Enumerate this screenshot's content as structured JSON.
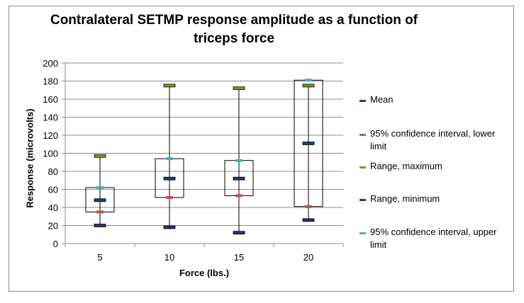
{
  "chart_data": {
    "type": "box",
    "title": "Contralateral SETMP response amplitude as a function of triceps force",
    "xlabel": "Force (lbs.)",
    "ylabel": "Response (microvolts)",
    "categories": [
      "5",
      "10",
      "15",
      "20"
    ],
    "ylim": [
      0,
      200
    ],
    "yticks": [
      0,
      20,
      40,
      60,
      80,
      100,
      120,
      140,
      160,
      180,
      200
    ],
    "grid": true,
    "legend_position": "right",
    "series": [
      {
        "name": "Mean",
        "key": "mean",
        "color": "#1f3f7a",
        "values": [
          48,
          72,
          72,
          111
        ]
      },
      {
        "name": "95% confidence interval, lower limit",
        "key": "ci_lower",
        "color": "#c0504d",
        "values": [
          35,
          51,
          53,
          41
        ]
      },
      {
        "name": "Range, maximum",
        "key": "max",
        "color": "#7a9a24",
        "values": [
          97,
          175,
          172,
          175
        ]
      },
      {
        "name": "Range, minimum",
        "key": "min",
        "color": "#3f2a6b",
        "values": [
          20,
          18,
          12,
          26
        ]
      },
      {
        "name": "95% confidence interval, upper limit",
        "key": "ci_upper",
        "color": "#4bacc6",
        "values": [
          62,
          94,
          92,
          181
        ]
      }
    ]
  }
}
